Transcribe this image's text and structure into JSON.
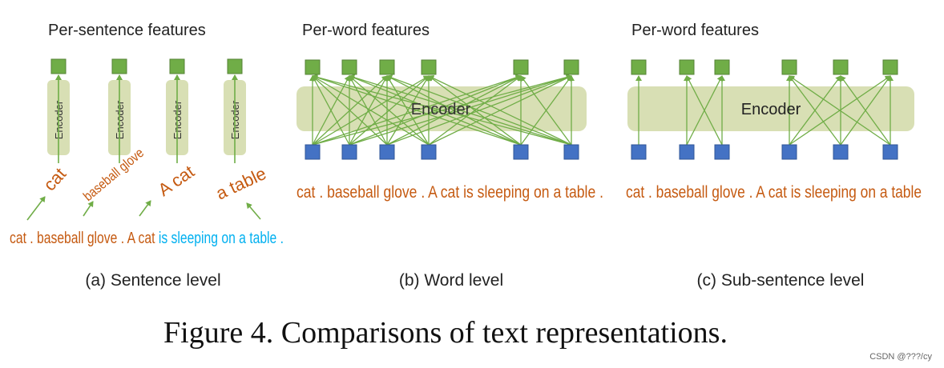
{
  "colors": {
    "green": "#70ad47",
    "green_dark": "#548235",
    "blue": "#4472c4",
    "blue_dark": "#2f5597",
    "encoder_fill": "#d8dfb4",
    "orange": "#c55a11",
    "cyan": "#00b0f0",
    "text": "#222222",
    "watermark": "#666666"
  },
  "panel_a": {
    "header": "Per-sentence features",
    "encoder_label": "Encoder",
    "phrases": [
      "cat",
      "baseball glove",
      "A cat",
      "a table"
    ],
    "sentence": {
      "orange": "cat . baseball glove . A cat ",
      "cyan": "is sleeping on a table ."
    },
    "caption": "(a) Sentence level"
  },
  "panel_b": {
    "header": "Per-word features",
    "encoder_label": "Encoder",
    "sentence": "cat . baseball glove . A cat is sleeping on a table .",
    "caption": "(b) Word level"
  },
  "panel_c": {
    "header": "Per-word features",
    "encoder_label": "Encoder",
    "sentence": "cat . baseball glove . A cat is sleeping on a table",
    "caption": "(c) Sub-sentence level"
  },
  "figure_caption": "Figure 4. Comparisons of text representations.",
  "watermark": "CSDN @???/cy"
}
